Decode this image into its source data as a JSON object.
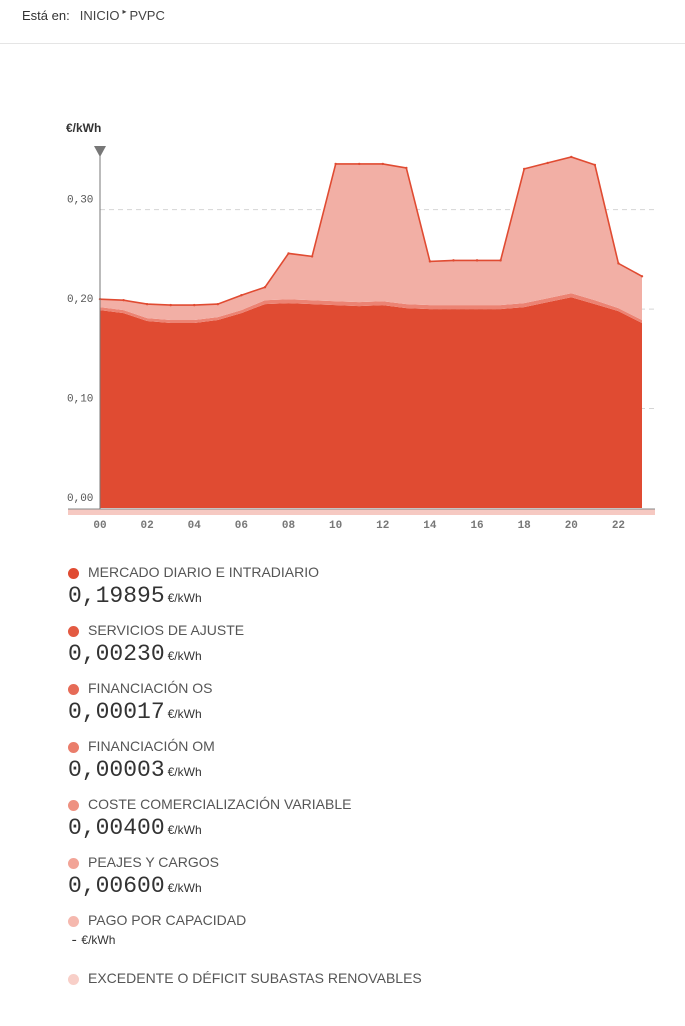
{
  "breadcrumb": {
    "prefix": "Está en:",
    "items": [
      "INICIO",
      "PVPC"
    ],
    "separator": "▸"
  },
  "chart_data": {
    "type": "area",
    "stacked": true,
    "ylabel": "€/kWh",
    "ylim": [
      0,
      0.36
    ],
    "yticks": [
      0,
      0.1,
      0.2,
      0.3
    ],
    "ytick_labels": [
      "0,00",
      "0,10",
      "0,20",
      "0,30"
    ],
    "x": [
      0,
      1,
      2,
      3,
      4,
      5,
      6,
      7,
      8,
      9,
      10,
      11,
      12,
      13,
      14,
      15,
      16,
      17,
      18,
      19,
      20,
      21,
      22,
      23
    ],
    "xtick_labels": [
      "00",
      "02",
      "04",
      "06",
      "08",
      "10",
      "12",
      "14",
      "16",
      "18",
      "20",
      "22"
    ],
    "grid": true,
    "series": [
      {
        "name": "MERCADO DIARIO E INTRADIARIO",
        "color": "#e04b32",
        "values": [
          0.199,
          0.196,
          0.188,
          0.186,
          0.186,
          0.189,
          0.196,
          0.205,
          0.206,
          0.205,
          0.204,
          0.203,
          0.204,
          0.201,
          0.2,
          0.2,
          0.2,
          0.2,
          0.202,
          0.207,
          0.212,
          0.205,
          0.198,
          0.186
        ]
      },
      {
        "name": "SERVICIOS DE AJUSTE",
        "color": "#ec8373",
        "values": [
          0.003,
          0.003,
          0.003,
          0.003,
          0.003,
          0.003,
          0.003,
          0.004,
          0.004,
          0.004,
          0.004,
          0.004,
          0.004,
          0.004,
          0.004,
          0.004,
          0.004,
          0.004,
          0.004,
          0.004,
          0.004,
          0.004,
          0.003,
          0.003
        ]
      },
      {
        "name": "PEAJES Y CARGOS",
        "color": "#f2afa5",
        "values": [
          0.008,
          0.01,
          0.014,
          0.015,
          0.015,
          0.013,
          0.015,
          0.013,
          0.046,
          0.044,
          0.138,
          0.139,
          0.138,
          0.137,
          0.044,
          0.045,
          0.045,
          0.045,
          0.135,
          0.136,
          0.137,
          0.136,
          0.045,
          0.044
        ]
      }
    ],
    "legend": [
      {
        "label": "MERCADO DIARIO E INTRADIARIO",
        "value": "0,19895",
        "unit": "€/kWh",
        "color": "#e04b32"
      },
      {
        "label": "SERVICIOS DE AJUSTE",
        "value": "0,00230",
        "unit": "€/kWh",
        "color": "#e35a42"
      },
      {
        "label": "FINANCIACIÓN OS",
        "value": "0,00017",
        "unit": "€/kWh",
        "color": "#e66b57"
      },
      {
        "label": "FINANCIACIÓN OM",
        "value": "0,00003",
        "unit": "€/kWh",
        "color": "#ea7d6b"
      },
      {
        "label": "COSTE COMERCIALIZACIÓN VARIABLE",
        "value": "0,00400",
        "unit": "€/kWh",
        "color": "#ee9181"
      },
      {
        "label": "PEAJES Y CARGOS",
        "value": "0,00600",
        "unit": "€/kWh",
        "color": "#f2a497"
      },
      {
        "label": "PAGO POR CAPACIDAD",
        "value": "-",
        "unit": "€/kWh",
        "color": "#f5b8ae"
      },
      {
        "label": "EXCEDENTE O DÉFICIT SUBASTAS RENOVABLES",
        "value": "",
        "unit": "",
        "color": "#f8cfc8"
      }
    ]
  }
}
